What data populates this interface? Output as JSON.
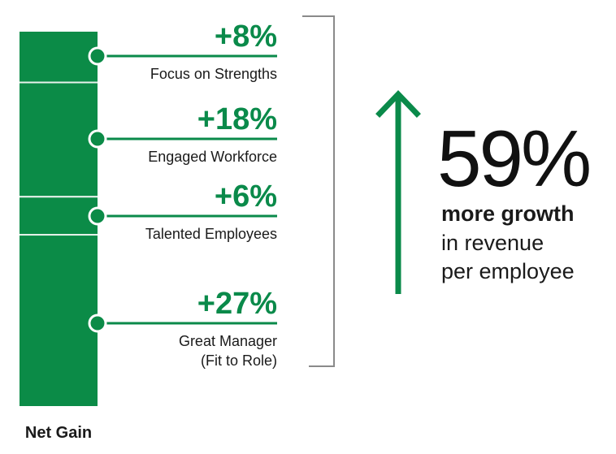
{
  "colors": {
    "accent": "#0a8a4a",
    "segment": "#0b8b47",
    "divider": "#e9f2ec",
    "bracket": "#8a8a8a",
    "text": "#1a1a1a"
  },
  "chart_data": {
    "type": "bar",
    "stacked": true,
    "categories": [
      "Net Gain"
    ],
    "series": [
      {
        "name": "Great Manager (Fit to Role)",
        "values": [
          27
        ],
        "label": "+27%",
        "name_lines": [
          "Great Manager",
          "(Fit to Role)"
        ]
      },
      {
        "name": "Talented Employees",
        "values": [
          6
        ],
        "label": "+6%",
        "name_lines": [
          "Talented Employees"
        ]
      },
      {
        "name": "Engaged Workforce",
        "values": [
          18
        ],
        "label": "+18%",
        "name_lines": [
          "Engaged Workforce"
        ]
      },
      {
        "name": "Focus on Strengths",
        "values": [
          8
        ],
        "label": "+8%",
        "name_lines": [
          "Focus on Strengths"
        ]
      }
    ],
    "total": 59,
    "annotation": {
      "value": "59%",
      "line1": "more growth",
      "line2": "in revenue",
      "line3": "per employee"
    },
    "legend": "inline-labels-left",
    "grid": false,
    "ylim": [
      0,
      59
    ]
  },
  "icons": {
    "arrow": "up-arrow-icon",
    "bracket": "bracket-icon"
  }
}
